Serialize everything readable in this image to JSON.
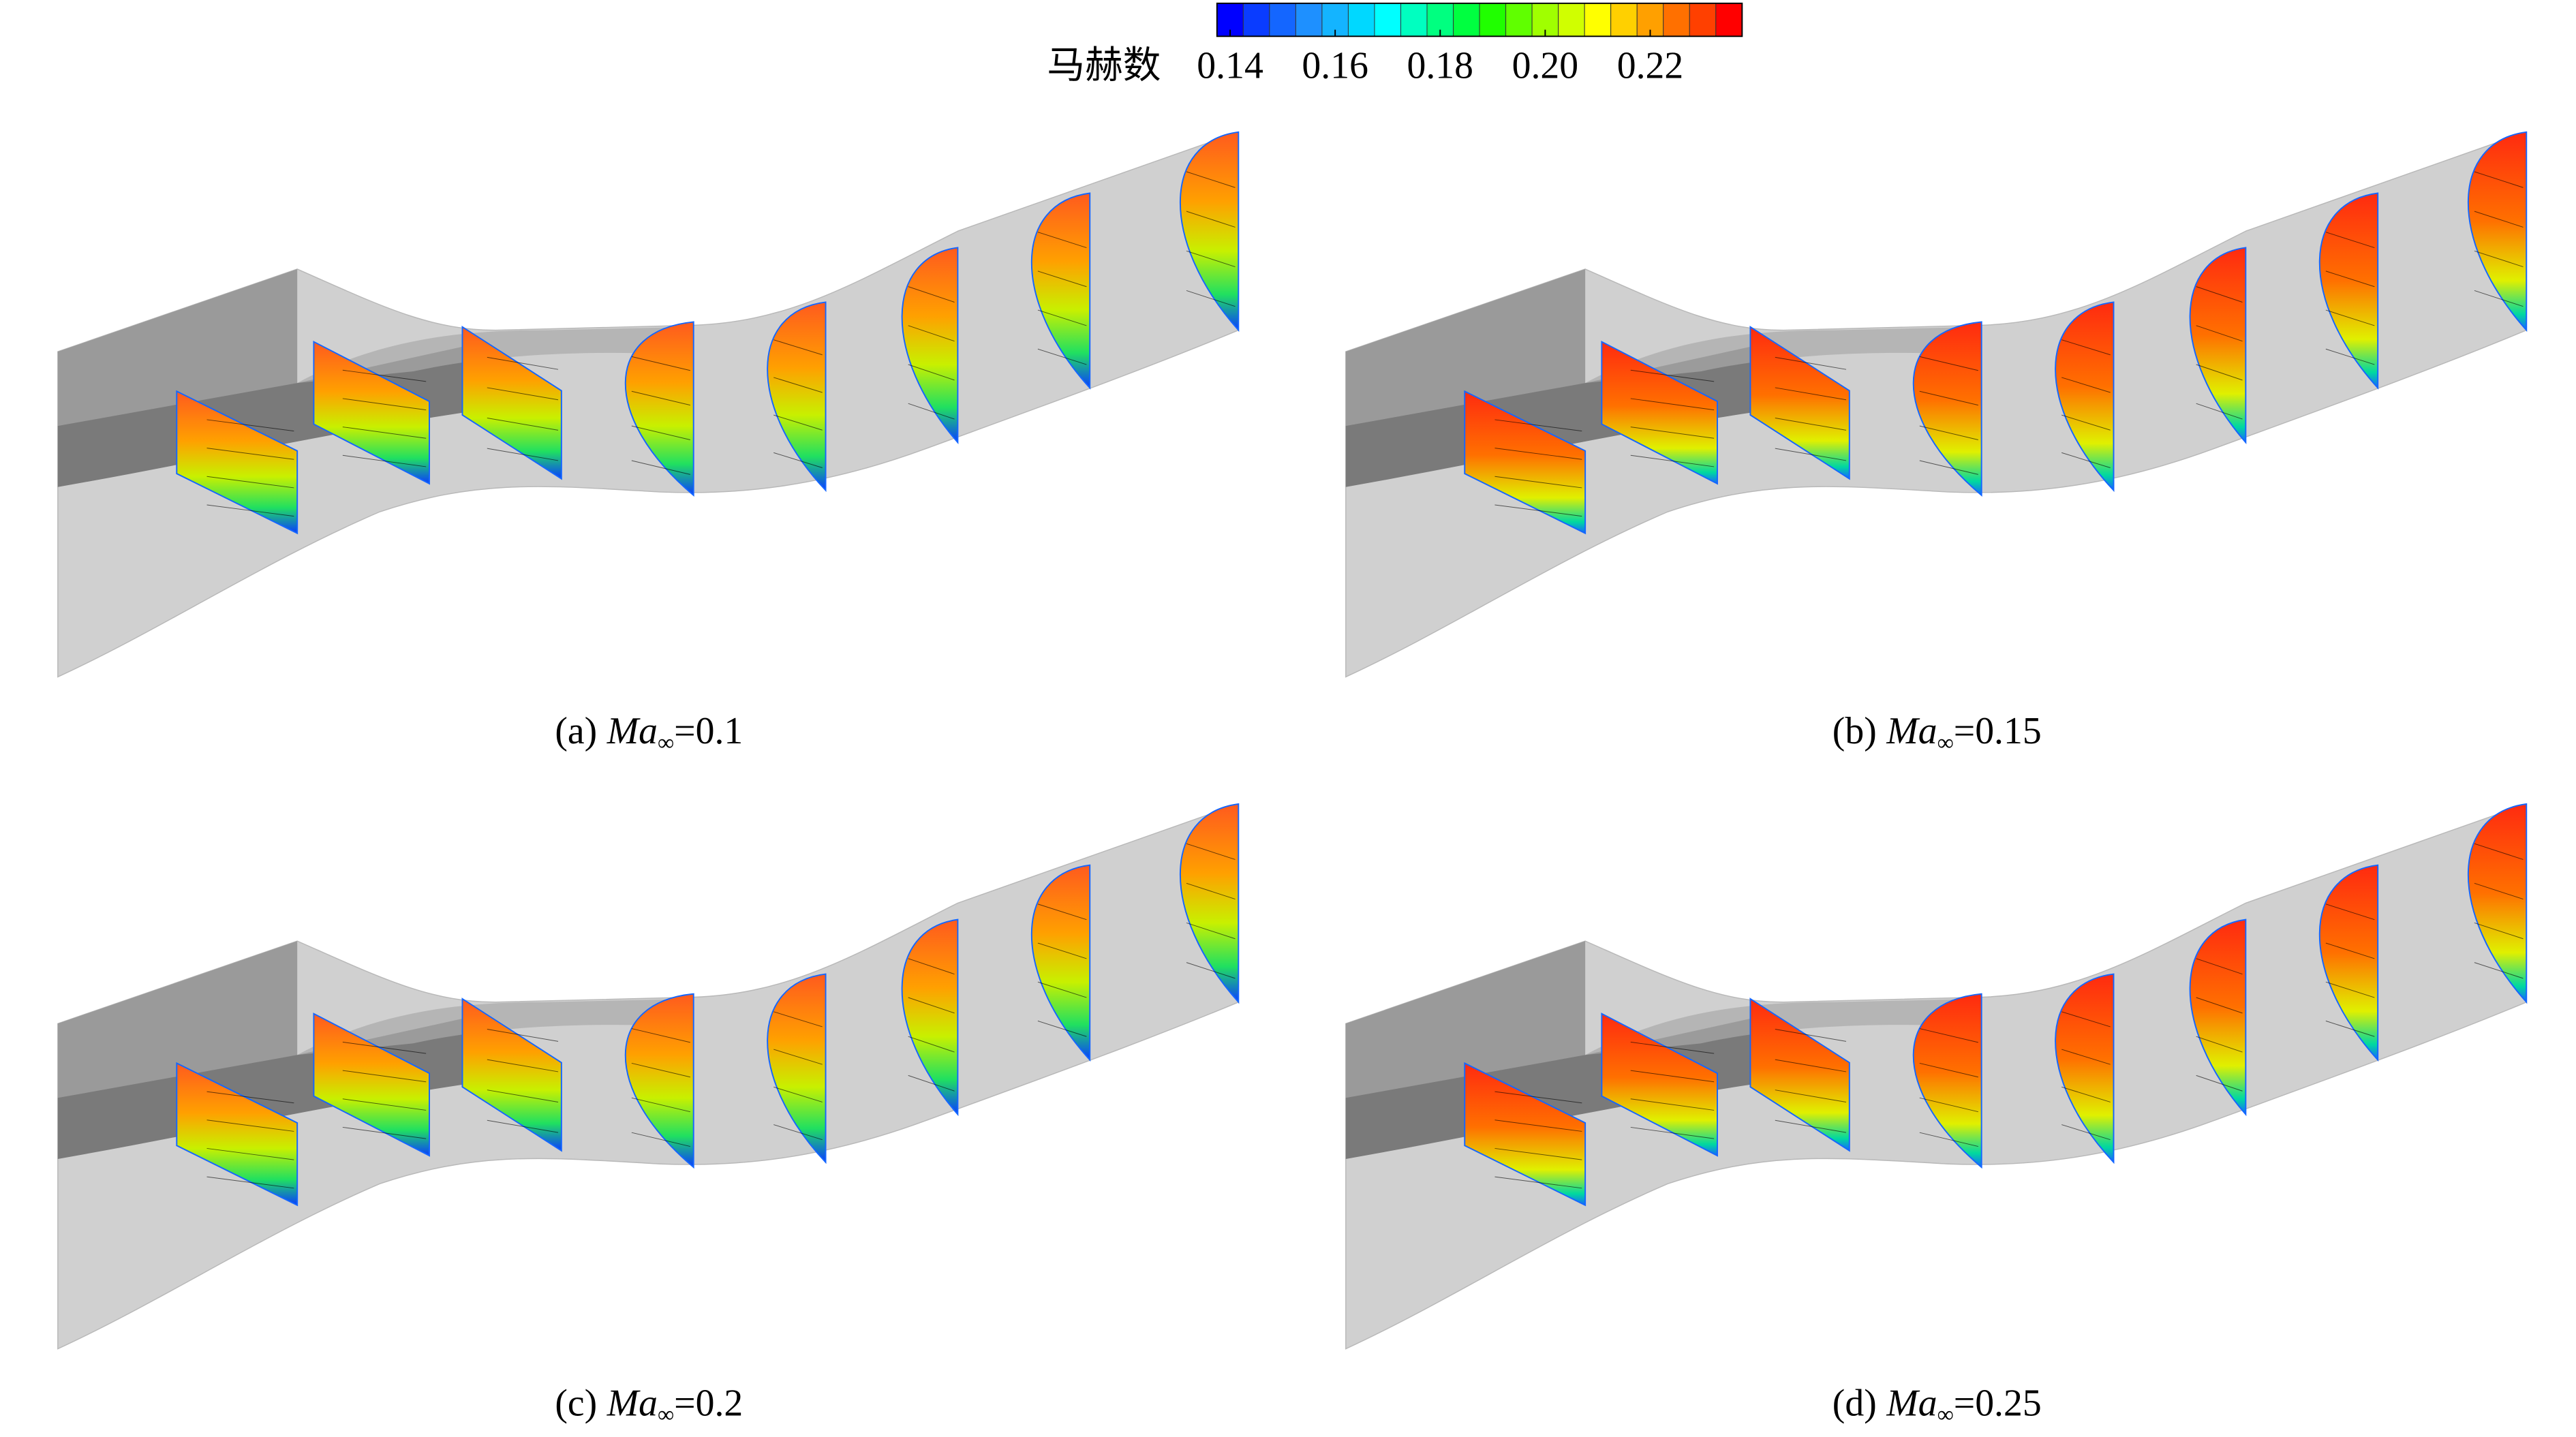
{
  "colorbar": {
    "label": "马赫数",
    "lim": [
      0.1375,
      0.2375
    ],
    "ticks": [
      0.14,
      0.16,
      0.18,
      {
        "value": 0.2,
        "label": "0.20"
      },
      0.22
    ],
    "colors": [
      "#0000ff",
      "#0a3cff",
      "#1466ff",
      "#1e90ff",
      "#14b4ff",
      "#00d8ff",
      "#00ffff",
      "#00ffc0",
      "#00ff80",
      "#00ff40",
      "#20ff00",
      "#60ff00",
      "#a0ff00",
      "#d0ff00",
      "#ffff00",
      "#ffd000",
      "#ffa000",
      "#ff7000",
      "#ff4000",
      "#ff0000"
    ]
  },
  "panels": [
    {
      "label": "(a)",
      "symbol": "Ma",
      "subscript": "∞",
      "value_text": "=0.1"
    },
    {
      "label": "(b)",
      "symbol": "Ma",
      "subscript": "∞",
      "value_text": "=0.15"
    },
    {
      "label": "(c)",
      "symbol": "Ma",
      "subscript": "∞",
      "value_text": "=0.2"
    },
    {
      "label": "(d)",
      "symbol": "Ma",
      "subscript": "∞",
      "value_text": "=0.25"
    }
  ]
}
